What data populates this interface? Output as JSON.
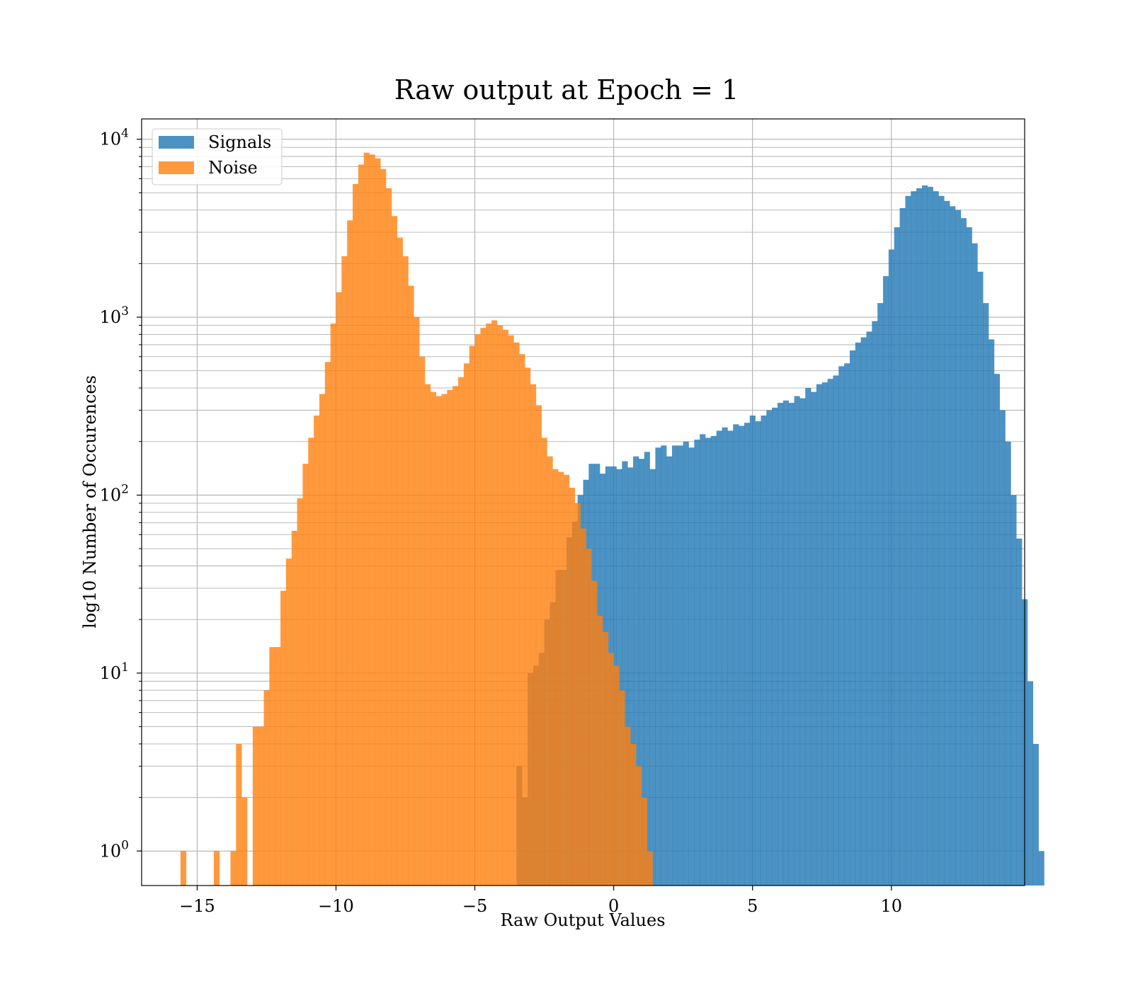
{
  "chart_data": {
    "type": "histogram",
    "title": "Raw output at Epoch = 1",
    "xlabel": "Raw Output Values",
    "ylabel": "log10 Number of Occurences",
    "xlim": [
      -17,
      14.8
    ],
    "ylim": [
      0.64,
      13000
    ],
    "yscale": "log",
    "grid": true,
    "legend_position": "top-left",
    "x_ticks": [
      {
        "value": -15,
        "label": "−15"
      },
      {
        "value": -10,
        "label": "−10"
      },
      {
        "value": -5,
        "label": "−5"
      },
      {
        "value": 0,
        "label": "0"
      },
      {
        "value": 5,
        "label": "5"
      },
      {
        "value": 10,
        "label": "10"
      }
    ],
    "y_ticks": [
      {
        "value": 1,
        "base": "10",
        "exp": "0"
      },
      {
        "value": 10,
        "base": "10",
        "exp": "1"
      },
      {
        "value": 100,
        "base": "10",
        "exp": "2"
      },
      {
        "value": 1000,
        "base": "10",
        "exp": "3"
      },
      {
        "value": 10000,
        "base": "10",
        "exp": "4"
      }
    ],
    "series": [
      {
        "name": "Signals",
        "color": "#1f77b4",
        "opacity": 0.8,
        "x_start": -3.5,
        "bin_width": 0.2,
        "counts": [
          3,
          2,
          10,
          11,
          13,
          20,
          25,
          38,
          38,
          58,
          71,
          100,
          122,
          150,
          150,
          132,
          145,
          145,
          140,
          155,
          143,
          165,
          160,
          175,
          140,
          185,
          190,
          165,
          190,
          190,
          200,
          185,
          205,
          220,
          210,
          215,
          230,
          240,
          230,
          250,
          245,
          255,
          280,
          260,
          280,
          300,
          310,
          330,
          340,
          330,
          360,
          350,
          400,
          380,
          420,
          430,
          450,
          470,
          530,
          550,
          650,
          720,
          770,
          830,
          950,
          1200,
          1700,
          2400,
          3200,
          4100,
          4800,
          5100,
          5300,
          5500,
          5400,
          5100,
          4800,
          4500,
          4200,
          4000,
          3600,
          3200,
          2600,
          1800,
          1200,
          750,
          480,
          300,
          200,
          100,
          57,
          26,
          9,
          4,
          1
        ]
      },
      {
        "name": "Noise",
        "color": "#ff7f0e",
        "opacity": 0.8,
        "x_start": -15.6,
        "bin_width": 0.2,
        "counts": [
          1,
          0,
          0,
          0,
          0,
          0,
          1,
          0,
          0,
          1,
          4,
          2,
          0,
          5,
          5,
          8,
          14,
          14,
          29,
          44,
          63,
          96,
          150,
          210,
          280,
          370,
          560,
          920,
          1380,
          2200,
          3500,
          5600,
          7200,
          8400,
          8200,
          7800,
          6800,
          5300,
          3700,
          2800,
          2200,
          1500,
          1000,
          600,
          420,
          380,
          360,
          370,
          390,
          410,
          460,
          550,
          690,
          800,
          870,
          920,
          960,
          900,
          850,
          790,
          720,
          620,
          520,
          420,
          320,
          210,
          165,
          140,
          135,
          130,
          110,
          90,
          65,
          50,
          33,
          21,
          17,
          13,
          11,
          8,
          5,
          4,
          3,
          2,
          1
        ]
      }
    ]
  }
}
